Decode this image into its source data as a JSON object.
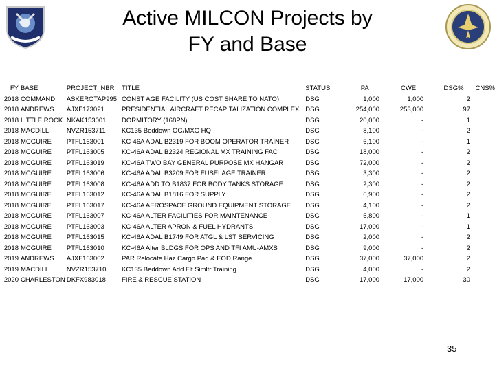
{
  "header": {
    "title": "Active MILCON Projects by FY and Base"
  },
  "columns": [
    "FY",
    "BASE",
    "PROJECT_NBR",
    "TITLE",
    "STATUS",
    "PA",
    "CWE",
    "DSG%",
    "CNS%"
  ],
  "rows": [
    [
      "2018",
      "COMMAND",
      "ASKEROTAP995",
      "CONST AGE FACILITY (US COST SHARE TO NATO)",
      "DSG",
      "1,000",
      "1,000",
      "2",
      ""
    ],
    [
      "2018",
      "ANDREWS",
      "AJXF173021",
      "PRESIDENTIAL AIRCRAFT RECAPITALIZATION COMPLEX",
      "DSG",
      "254,000",
      "253,000",
      "97",
      ""
    ],
    [
      "2018",
      "LITTLE ROCK",
      "NKAK153001",
      "DORMITORY (168PN)",
      "DSG",
      "20,000",
      "-",
      "1",
      ""
    ],
    [
      "2018",
      "MACDILL",
      "NVZR153711",
      "KC135 Beddown OG/MXG HQ",
      "DSG",
      "8,100",
      "-",
      "2",
      ""
    ],
    [
      "2018",
      "MCGUIRE",
      "PTFL163001",
      "KC-46A ADAL B2319 FOR BOOM OPERATOR TRAINER",
      "DSG",
      "6,100",
      "-",
      "1",
      ""
    ],
    [
      "2018",
      "MCGUIRE",
      "PTFL163005",
      "KC-46A ADAL B2324 REGIONAL MX TRAINING FAC",
      "DSG",
      "18,000",
      "-",
      "2",
      ""
    ],
    [
      "2018",
      "MCGUIRE",
      "PTFL163019",
      "KC-46A TWO BAY GENERAL PURPOSE MX HANGAR",
      "DSG",
      "72,000",
      "-",
      "2",
      ""
    ],
    [
      "2018",
      "MCGUIRE",
      "PTFL163006",
      "KC-46A ADAL B3209 FOR FUSELAGE TRAINER",
      "DSG",
      "3,300",
      "-",
      "2",
      ""
    ],
    [
      "2018",
      "MCGUIRE",
      "PTFL163008",
      "KC-46A ADD TO B1837 FOR BODY TANKS STORAGE",
      "DSG",
      "2,300",
      "-",
      "2",
      ""
    ],
    [
      "2018",
      "MCGUIRE",
      "PTFL163012",
      "KC-46A ADAL B1816 FOR SUPPLY",
      "DSG",
      "6,900",
      "-",
      "2",
      ""
    ],
    [
      "2018",
      "MCGUIRE",
      "PTFL163017",
      "KC-46A AEROSPACE GROUND EQUIPMENT STORAGE",
      "DSG",
      "4,100",
      "-",
      "2",
      ""
    ],
    [
      "2018",
      "MCGUIRE",
      "PTFL163007",
      "KC-46A ALTER FACILITIES FOR MAINTENANCE",
      "DSG",
      "5,800",
      "-",
      "1",
      ""
    ],
    [
      "2018",
      "MCGUIRE",
      "PTFL163003",
      "KC-46A ALTER APRON & FUEL HYDRANTS",
      "DSG",
      "17,000",
      "-",
      "1",
      ""
    ],
    [
      "2018",
      "MCGUIRE",
      "PTFL163015",
      "KC-46A ADAL B1749 FOR ATGL & LST SERVICING",
      "DSG",
      "2,000",
      "-",
      "2",
      ""
    ],
    [
      "2018",
      "MCGUIRE",
      "PTFL163010",
      "KC-46A Alter BLDGS FOR OPS AND TFI AMU-AMXS",
      "DSG",
      "9,000",
      "-",
      "2",
      ""
    ],
    [
      "2019",
      "ANDREWS",
      "AJXF163002",
      "PAR Relocate Haz Cargo Pad & EOD Range",
      "DSG",
      "37,000",
      "37,000",
      "2",
      ""
    ],
    [
      "2019",
      "MACDILL",
      "NVZR153710",
      "KC135 Beddown Add Flt Simltr Training",
      "DSG",
      "4,000",
      "-",
      "2",
      ""
    ],
    [
      "2020",
      "CHARLESTON",
      "DKFX983018",
      "FIRE & RESCUE STATION",
      "DSG",
      "17,000",
      "17,000",
      "30",
      ""
    ]
  ],
  "footer": {
    "page_number": "35"
  },
  "logos": {
    "left": "shield-emblem-icon",
    "right": "seal-emblem-icon"
  }
}
